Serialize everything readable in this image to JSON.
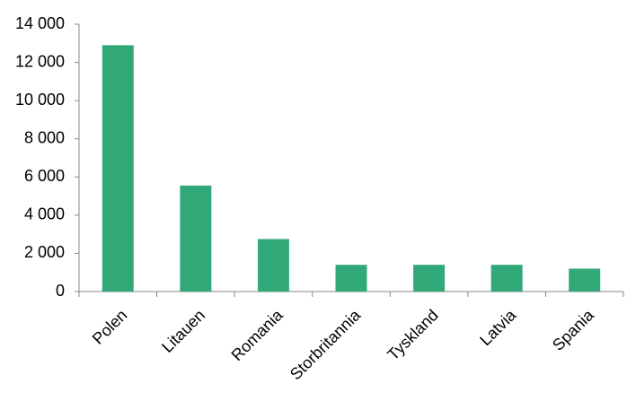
{
  "chart_data": {
    "type": "bar",
    "categories": [
      "Polen",
      "Litauen",
      "Romania",
      "Storbritannia",
      "Tyskland",
      "Latvia",
      "Spania"
    ],
    "values": [
      12900,
      5550,
      2750,
      1400,
      1400,
      1400,
      1200
    ],
    "color": "#31a878",
    "ylim": [
      0,
      14000
    ],
    "yticks": [
      0,
      {
        "value": 2000,
        "label": "2 000"
      },
      {
        "value": 4000,
        "label": "4 000"
      },
      {
        "value": 6000,
        "label": "6 000"
      },
      {
        "value": 8000,
        "label": "8 000"
      },
      {
        "value": 10000,
        "label": "10 000"
      },
      {
        "value": 12000,
        "label": "12 000"
      },
      {
        "value": 14000,
        "label": "14 000"
      }
    ],
    "grid": false
  }
}
